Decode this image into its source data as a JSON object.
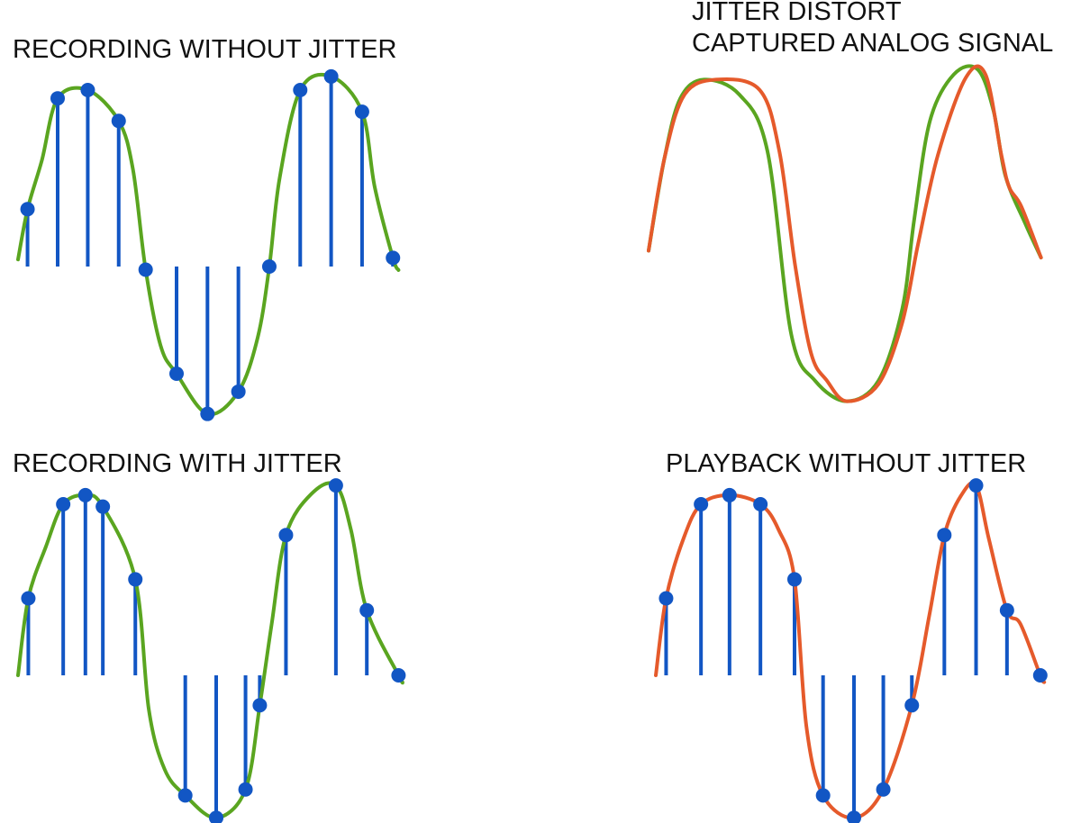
{
  "panels": [
    {
      "title_lines": [
        "RECORDING WITHOUT JITTER"
      ],
      "samples": [
        {
          "t": 0.024,
          "v": 0.325
        },
        {
          "t": 0.1,
          "v": 0.953
        },
        {
          "t": 0.176,
          "v": 1.0
        },
        {
          "t": 0.254,
          "v": 0.825
        },
        {
          "t": 0.322,
          "v": -0.018
        },
        {
          "t": 0.4,
          "v": -0.607
        },
        {
          "t": 0.478,
          "v": -0.835
        },
        {
          "t": 0.556,
          "v": -0.709
        },
        {
          "t": 0.634,
          "v": 0.0
        },
        {
          "t": 0.712,
          "v": 1.0
        },
        {
          "t": 0.79,
          "v": 1.077
        },
        {
          "t": 0.868,
          "v": 0.877
        },
        {
          "t": 0.946,
          "v": 0.049
        }
      ],
      "curves": [
        {
          "color": "#5aa520",
          "points": [
            [
              0.0,
              0.04
            ],
            [
              0.024,
              0.325
            ],
            [
              0.06,
              0.6
            ],
            [
              0.1,
              0.953
            ],
            [
              0.176,
              1.0
            ],
            [
              0.254,
              0.825
            ],
            [
              0.29,
              0.55
            ],
            [
              0.322,
              -0.018
            ],
            [
              0.36,
              -0.45
            ],
            [
              0.4,
              -0.607
            ],
            [
              0.478,
              -0.835
            ],
            [
              0.556,
              -0.709
            ],
            [
              0.605,
              -0.4
            ],
            [
              0.634,
              0.0
            ],
            [
              0.66,
              0.5
            ],
            [
              0.712,
              1.0
            ],
            [
              0.79,
              1.077
            ],
            [
              0.868,
              0.877
            ],
            [
              0.9,
              0.45
            ],
            [
              0.946,
              0.049
            ],
            [
              0.96,
              -0.02
            ]
          ]
        }
      ]
    },
    {
      "title_lines": [
        "JITTER DISTORT",
        "CAPTURED ANALOG SIGNAL"
      ],
      "samples": [],
      "curves": [
        {
          "color": "#5aa520",
          "points": [
            [
              0.0,
              0.04
            ],
            [
              0.04,
              0.58
            ],
            [
              0.08,
              0.93
            ],
            [
              0.14,
              1.04
            ],
            [
              0.23,
              0.95
            ],
            [
              0.3,
              0.62
            ],
            [
              0.36,
              -0.45
            ],
            [
              0.42,
              -0.72
            ],
            [
              0.5,
              -0.84
            ],
            [
              0.58,
              -0.72
            ],
            [
              0.64,
              -0.3
            ],
            [
              0.67,
              0.22
            ],
            [
              0.71,
              0.8
            ],
            [
              0.77,
              1.07
            ],
            [
              0.83,
              1.1
            ],
            [
              0.87,
              0.86
            ],
            [
              0.9,
              0.48
            ],
            [
              0.95,
              0.2
            ],
            [
              0.99,
              0.0
            ]
          ]
        },
        {
          "color": "#e55a2b",
          "points": [
            [
              0.0,
              0.04
            ],
            [
              0.04,
              0.58
            ],
            [
              0.09,
              0.95
            ],
            [
              0.17,
              1.04
            ],
            [
              0.28,
              0.98
            ],
            [
              0.33,
              0.62
            ],
            [
              0.37,
              -0.05
            ],
            [
              0.41,
              -0.56
            ],
            [
              0.45,
              -0.72
            ],
            [
              0.5,
              -0.84
            ],
            [
              0.58,
              -0.74
            ],
            [
              0.64,
              -0.38
            ],
            [
              0.68,
              0.08
            ],
            [
              0.73,
              0.6
            ],
            [
              0.8,
              1.05
            ],
            [
              0.85,
              1.07
            ],
            [
              0.89,
              0.6
            ],
            [
              0.91,
              0.41
            ],
            [
              0.94,
              0.3
            ],
            [
              0.99,
              0.0
            ]
          ]
        }
      ]
    },
    {
      "title_lines": [
        "RECORDING WITH JITTER"
      ],
      "samples": [
        {
          "t": 0.026,
          "v": 0.45
        },
        {
          "t": 0.114,
          "v": 1.0
        },
        {
          "t": 0.17,
          "v": 1.053
        },
        {
          "t": 0.214,
          "v": 0.986
        },
        {
          "t": 0.296,
          "v": 0.561
        },
        {
          "t": 0.422,
          "v": -0.702
        },
        {
          "t": 0.5,
          "v": -0.833
        },
        {
          "t": 0.574,
          "v": -0.667
        },
        {
          "t": 0.61,
          "v": -0.175
        },
        {
          "t": 0.676,
          "v": 0.82
        },
        {
          "t": 0.802,
          "v": 1.11
        },
        {
          "t": 0.88,
          "v": 0.38
        },
        {
          "t": 0.96,
          "v": 0.0
        }
      ],
      "curves": [
        {
          "color": "#5aa520",
          "points": [
            [
              0.0,
              0.0
            ],
            [
              0.026,
              0.45
            ],
            [
              0.07,
              0.75
            ],
            [
              0.114,
              1.0
            ],
            [
              0.17,
              1.053
            ],
            [
              0.214,
              0.986
            ],
            [
              0.296,
              0.561
            ],
            [
              0.33,
              -0.2
            ],
            [
              0.37,
              -0.55
            ],
            [
              0.422,
              -0.702
            ],
            [
              0.5,
              -0.833
            ],
            [
              0.574,
              -0.667
            ],
            [
              0.61,
              -0.175
            ],
            [
              0.64,
              0.3
            ],
            [
              0.676,
              0.82
            ],
            [
              0.74,
              1.06
            ],
            [
              0.802,
              1.11
            ],
            [
              0.84,
              0.85
            ],
            [
              0.88,
              0.38
            ],
            [
              0.96,
              0.0
            ],
            [
              0.97,
              -0.04
            ]
          ]
        }
      ]
    },
    {
      "title_lines": [
        "PLAYBACK WITHOUT JITTER"
      ],
      "samples": [
        {
          "t": 0.026,
          "v": 0.45
        },
        {
          "t": 0.114,
          "v": 1.0
        },
        {
          "t": 0.186,
          "v": 1.053
        },
        {
          "t": 0.264,
          "v": 1.0
        },
        {
          "t": 0.35,
          "v": 0.561
        },
        {
          "t": 0.422,
          "v": -0.702
        },
        {
          "t": 0.5,
          "v": -0.833
        },
        {
          "t": 0.574,
          "v": -0.667
        },
        {
          "t": 0.646,
          "v": -0.175
        },
        {
          "t": 0.728,
          "v": 0.82
        },
        {
          "t": 0.808,
          "v": 1.11
        },
        {
          "t": 0.886,
          "v": 0.38
        },
        {
          "t": 0.97,
          "v": 0.0
        }
      ],
      "curves": [
        {
          "color": "#e55a2b",
          "points": [
            [
              0.0,
              0.0
            ],
            [
              0.026,
              0.45
            ],
            [
              0.07,
              0.8
            ],
            [
              0.114,
              1.0
            ],
            [
              0.186,
              1.053
            ],
            [
              0.264,
              1.0
            ],
            [
              0.31,
              0.85
            ],
            [
              0.35,
              0.561
            ],
            [
              0.38,
              -0.3
            ],
            [
              0.422,
              -0.702
            ],
            [
              0.5,
              -0.833
            ],
            [
              0.574,
              -0.667
            ],
            [
              0.646,
              -0.175
            ],
            [
              0.69,
              0.35
            ],
            [
              0.728,
              0.82
            ],
            [
              0.77,
              1.05
            ],
            [
              0.808,
              1.11
            ],
            [
              0.84,
              0.8
            ],
            [
              0.886,
              0.38
            ],
            [
              0.92,
              0.3
            ],
            [
              0.97,
              0.0
            ],
            [
              0.98,
              -0.04
            ]
          ]
        }
      ]
    }
  ],
  "colors": {
    "sample": "#1256c4",
    "stem": "#1256c4",
    "original_signal": "#5aa520",
    "reconstructed_signal": "#e55a2b",
    "text": "#111111"
  }
}
